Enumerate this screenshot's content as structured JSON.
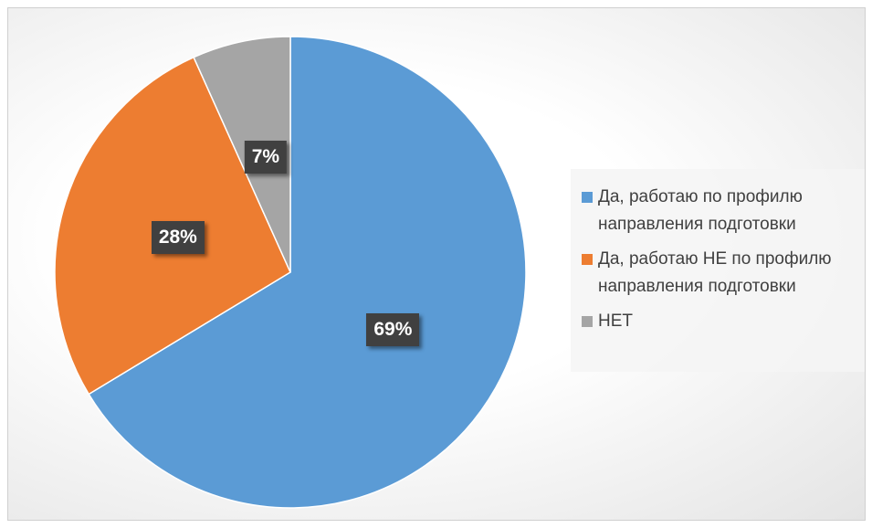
{
  "chart_data": {
    "type": "pie",
    "categories": [
      " Да, работаю по профилю направления подготовки",
      "Да, работаю НЕ по профилю направления подготовки",
      "НЕТ"
    ],
    "values": [
      69,
      28,
      7
    ],
    "value_labels": [
      "69%",
      "28%",
      "7%"
    ],
    "colors": [
      "#5b9bd5",
      "#ed7d31",
      "#a5a5a5"
    ],
    "legend": "right"
  }
}
